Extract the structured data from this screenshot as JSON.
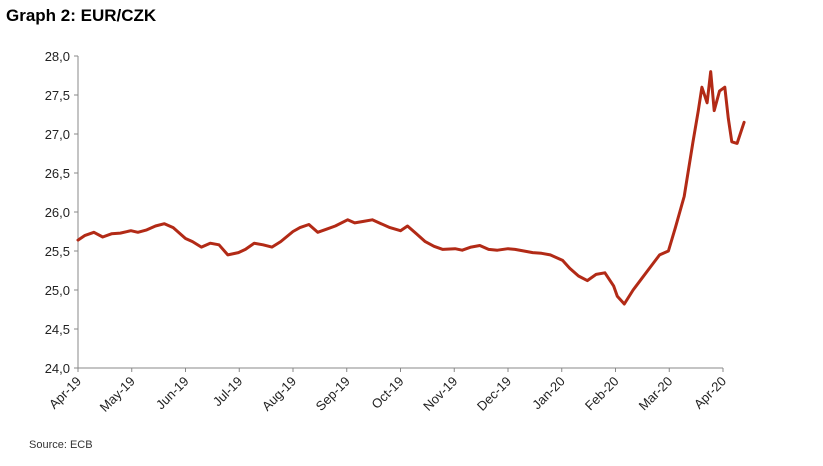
{
  "title": "Graph 2: EUR/CZK",
  "source": "Source: ECB",
  "chart_data": {
    "type": "line",
    "title": "Graph 2: EUR/CZK",
    "xlabel": "",
    "ylabel": "",
    "ylim": [
      24.0,
      28.0
    ],
    "yticks": [
      "24,0",
      "24,5",
      "25,0",
      "25,5",
      "26,0",
      "26,5",
      "27,0",
      "27,5",
      "28,0"
    ],
    "grid": false,
    "legend": "none",
    "x_tick_labels": [
      "Apr-19",
      "May-19",
      "Jun-19",
      "Jul-19",
      "Aug-19",
      "Sep-19",
      "Oct-19",
      "Nov-19",
      "Dec-19",
      "Jan-20",
      "Feb-20",
      "Mar-20",
      "Apr-20"
    ],
    "line_color": "#b22a16",
    "series": [
      {
        "points": [
          [
            "2019-04-01",
            25.64
          ],
          [
            "2019-04-05",
            25.7
          ],
          [
            "2019-04-10",
            25.74
          ],
          [
            "2019-04-15",
            25.68
          ],
          [
            "2019-04-20",
            25.72
          ],
          [
            "2019-04-25",
            25.73
          ],
          [
            "2019-05-01",
            25.76
          ],
          [
            "2019-05-05",
            25.74
          ],
          [
            "2019-05-10",
            25.77
          ],
          [
            "2019-05-15",
            25.82
          ],
          [
            "2019-05-20",
            25.85
          ],
          [
            "2019-05-25",
            25.8
          ],
          [
            "2019-06-01",
            25.66
          ],
          [
            "2019-06-05",
            25.62
          ],
          [
            "2019-06-10",
            25.55
          ],
          [
            "2019-06-15",
            25.6
          ],
          [
            "2019-06-20",
            25.58
          ],
          [
            "2019-06-25",
            25.45
          ],
          [
            "2019-07-01",
            25.48
          ],
          [
            "2019-07-05",
            25.52
          ],
          [
            "2019-07-10",
            25.6
          ],
          [
            "2019-07-15",
            25.58
          ],
          [
            "2019-07-20",
            25.55
          ],
          [
            "2019-07-25",
            25.62
          ],
          [
            "2019-08-01",
            25.75
          ],
          [
            "2019-08-05",
            25.8
          ],
          [
            "2019-08-10",
            25.84
          ],
          [
            "2019-08-15",
            25.74
          ],
          [
            "2019-08-20",
            25.78
          ],
          [
            "2019-08-25",
            25.82
          ],
          [
            "2019-09-01",
            25.9
          ],
          [
            "2019-09-05",
            25.86
          ],
          [
            "2019-09-10",
            25.88
          ],
          [
            "2019-09-15",
            25.9
          ],
          [
            "2019-09-20",
            25.85
          ],
          [
            "2019-09-25",
            25.8
          ],
          [
            "2019-10-01",
            25.76
          ],
          [
            "2019-10-05",
            25.82
          ],
          [
            "2019-10-10",
            25.72
          ],
          [
            "2019-10-15",
            25.62
          ],
          [
            "2019-10-20",
            25.56
          ],
          [
            "2019-10-25",
            25.52
          ],
          [
            "2019-11-01",
            25.53
          ],
          [
            "2019-11-05",
            25.51
          ],
          [
            "2019-11-10",
            25.55
          ],
          [
            "2019-11-15",
            25.57
          ],
          [
            "2019-11-20",
            25.52
          ],
          [
            "2019-11-25",
            25.51
          ],
          [
            "2019-12-01",
            25.53
          ],
          [
            "2019-12-05",
            25.52
          ],
          [
            "2019-12-10",
            25.5
          ],
          [
            "2019-12-15",
            25.48
          ],
          [
            "2019-12-20",
            25.47
          ],
          [
            "2019-12-25",
            25.45
          ],
          [
            "2020-01-01",
            25.38
          ],
          [
            "2020-01-05",
            25.28
          ],
          [
            "2020-01-10",
            25.18
          ],
          [
            "2020-01-15",
            25.12
          ],
          [
            "2020-01-20",
            25.2
          ],
          [
            "2020-01-25",
            25.22
          ],
          [
            "2020-01-30",
            25.05
          ],
          [
            "2020-02-01",
            24.92
          ],
          [
            "2020-02-05",
            24.82
          ],
          [
            "2020-02-10",
            25.0
          ],
          [
            "2020-02-15",
            25.15
          ],
          [
            "2020-02-20",
            25.3
          ],
          [
            "2020-02-25",
            25.45
          ],
          [
            "2020-03-01",
            25.5
          ],
          [
            "2020-03-05",
            25.8
          ],
          [
            "2020-03-10",
            26.2
          ],
          [
            "2020-03-15",
            26.9
          ],
          [
            "2020-03-18",
            27.3
          ],
          [
            "2020-03-20",
            27.6
          ],
          [
            "2020-03-23",
            27.4
          ],
          [
            "2020-03-25",
            27.8
          ],
          [
            "2020-03-27",
            27.3
          ],
          [
            "2020-03-30",
            27.55
          ],
          [
            "2020-04-02",
            27.6
          ],
          [
            "2020-04-04",
            27.2
          ],
          [
            "2020-04-06",
            26.9
          ],
          [
            "2020-04-09",
            26.88
          ],
          [
            "2020-04-13",
            27.15
          ]
        ]
      }
    ]
  }
}
